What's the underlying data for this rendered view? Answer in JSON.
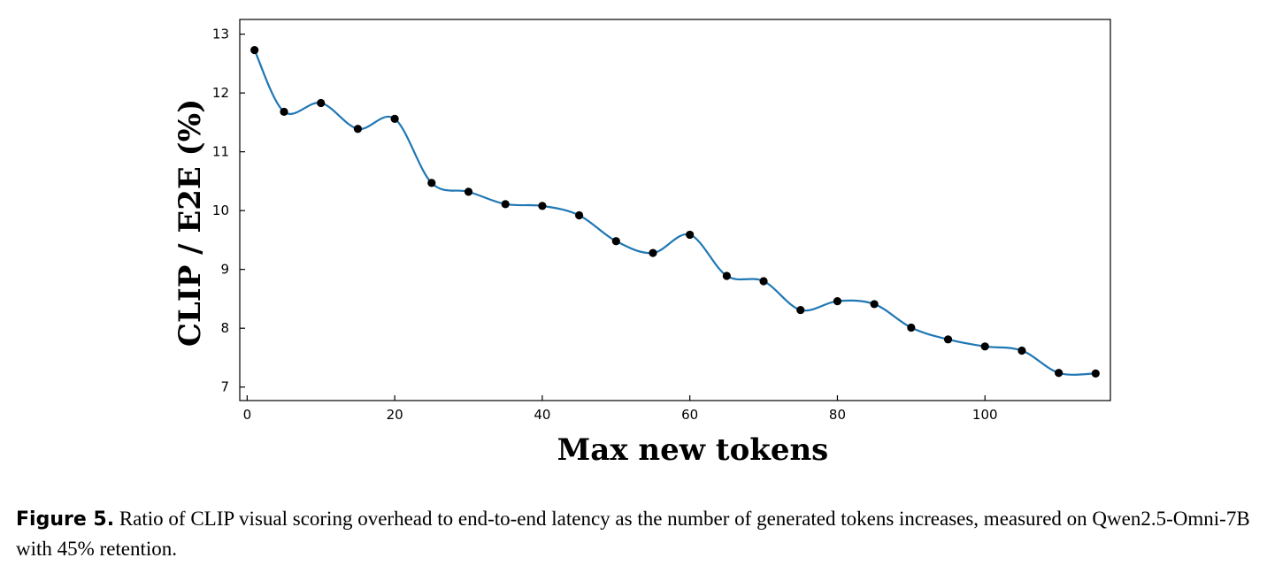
{
  "chart_data": {
    "type": "line",
    "xlabel": "Max new tokens",
    "ylabel": "CLIP / E2E (%)",
    "xlim": [
      -1,
      117
    ],
    "ylim": [
      6.77,
      13.25
    ],
    "xticks": [
      0,
      20,
      40,
      60,
      80,
      100
    ],
    "yticks": [
      7,
      8,
      9,
      10,
      11,
      12,
      13
    ],
    "grid": false,
    "series": [
      {
        "color": "#1f77b4",
        "marker_color": "#000000",
        "x": [
          1,
          5,
          10,
          15,
          20,
          25,
          30,
          35,
          40,
          45,
          50,
          55,
          60,
          65,
          70,
          75,
          80,
          85,
          90,
          95,
          100,
          105,
          110,
          115
        ],
        "y": [
          12.73,
          11.68,
          11.83,
          11.39,
          11.56,
          10.47,
          10.32,
          10.11,
          10.08,
          9.92,
          9.48,
          9.28,
          9.59,
          8.89,
          8.8,
          8.31,
          8.46,
          8.41,
          8.01,
          7.81,
          7.69,
          7.62,
          7.24,
          7.23
        ]
      }
    ]
  },
  "caption": {
    "label": "Figure 5.",
    "text": " Ratio of CLIP visual scoring overhead to end-to-end latency as the number of generated tokens increases, measured on Qwen2.5-Omni-7B with 45% retention."
  }
}
